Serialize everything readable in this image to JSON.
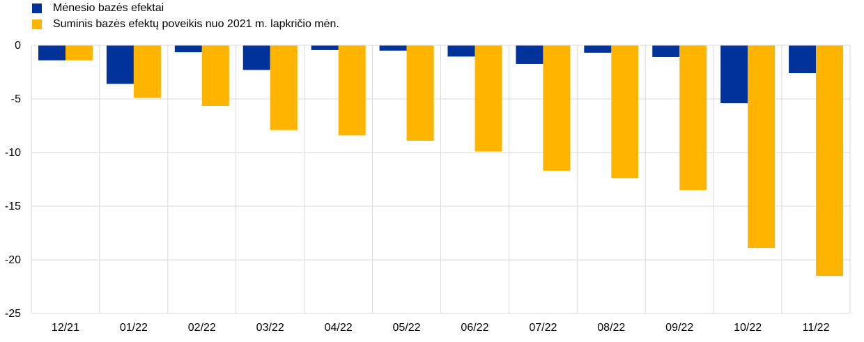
{
  "chart_data": {
    "type": "bar",
    "categories": [
      "12/21",
      "01/22",
      "02/22",
      "03/22",
      "04/22",
      "05/22",
      "06/22",
      "07/22",
      "08/22",
      "09/22",
      "10/22",
      "11/22"
    ],
    "series": [
      {
        "name": "Mėnesio bazės efektai",
        "color": "#003299",
        "values": [
          -1.4,
          -3.6,
          -0.65,
          -2.3,
          -0.45,
          -0.5,
          -1.05,
          -1.75,
          -0.7,
          -1.1,
          -5.4,
          -2.6
        ]
      },
      {
        "name": "Suminis bazės efektų poveikis nuo 2021 m. lapkričio mėn.",
        "color": "#FFB400",
        "values": [
          -1.4,
          -4.9,
          -5.65,
          -7.9,
          -8.4,
          -8.9,
          -9.9,
          -11.7,
          -12.4,
          -13.5,
          -18.9,
          -21.5
        ]
      }
    ],
    "ylim": [
      -25,
      0
    ],
    "yticks": [
      0,
      -5,
      -10,
      -15,
      -20,
      -25
    ],
    "grid": true,
    "legend": "top-left",
    "title": "",
    "xlabel": "",
    "ylabel": ""
  }
}
